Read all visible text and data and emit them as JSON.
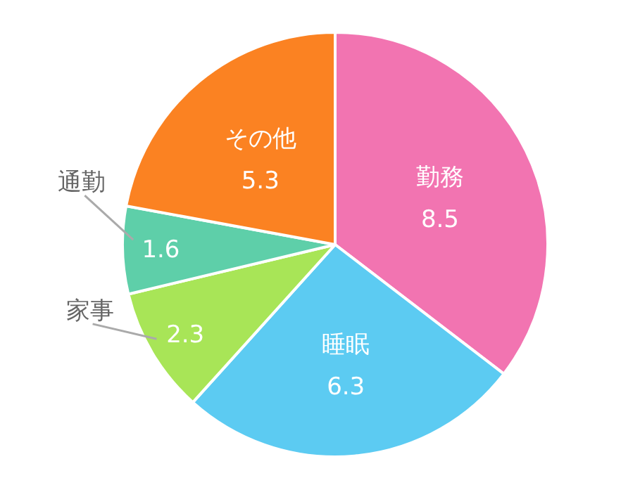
{
  "chart_data": {
    "type": "pie",
    "categories": [
      "勤務",
      "睡眠",
      "家事",
      "通勤",
      "その他"
    ],
    "values": [
      8.5,
      6.3,
      2.3,
      1.6,
      5.3
    ],
    "colors": [
      "#f274b1",
      "#5ccbf2",
      "#a8e557",
      "#5ecfa9",
      "#fb8222"
    ],
    "data_labels": true
  }
}
